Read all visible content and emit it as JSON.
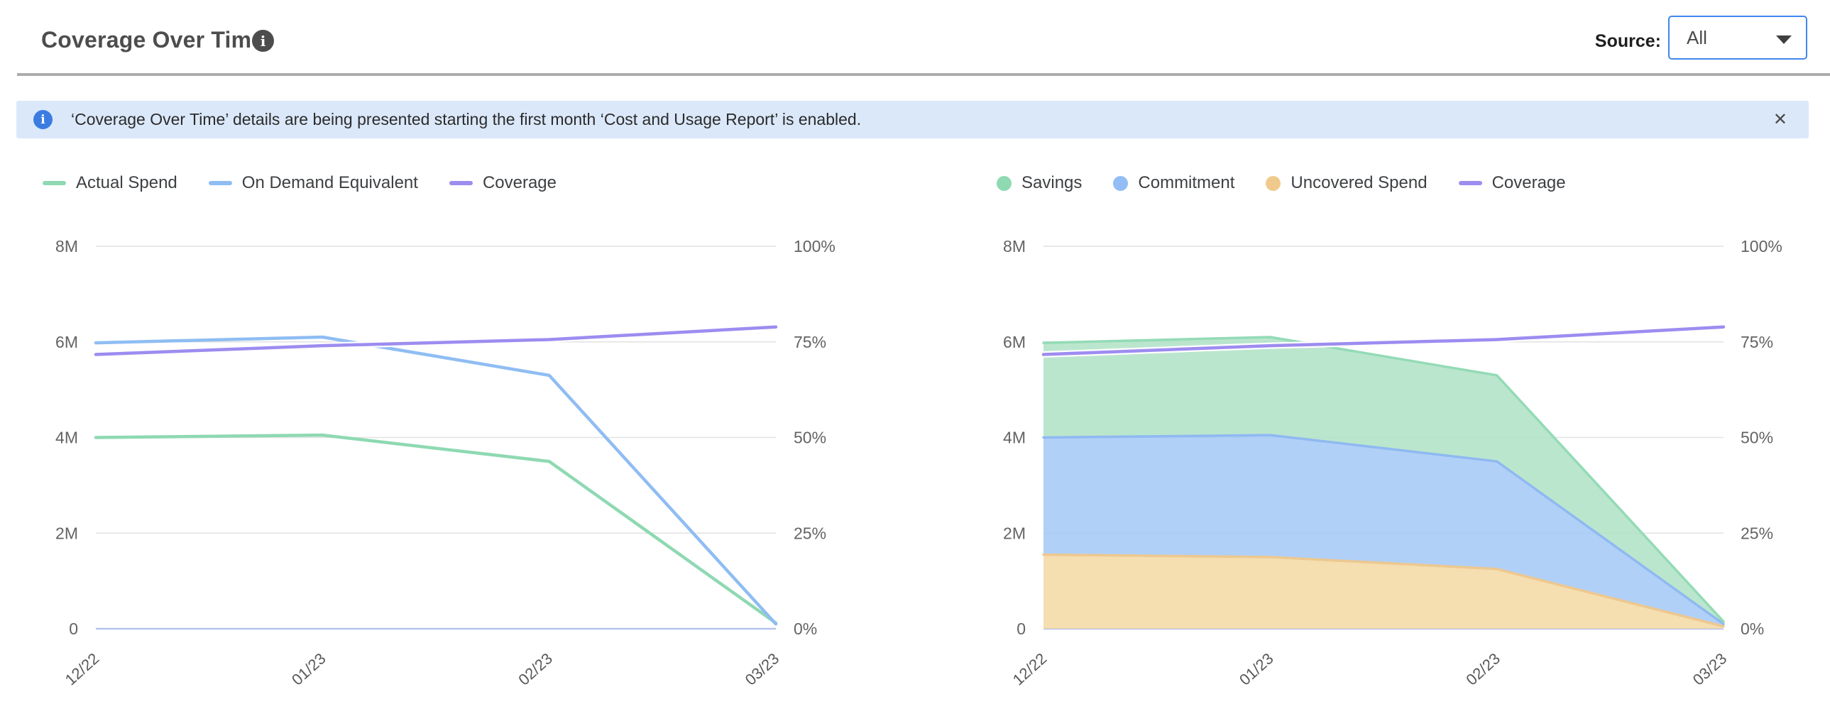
{
  "header": {
    "title": "Coverage Over Time",
    "source_label": "Source:",
    "source_value": "All"
  },
  "banner": {
    "text": "‘Coverage Over Time’ details are being presented starting the first month ‘Cost and Usage Report’ is enabled.",
    "close_icon": "✕"
  },
  "colors": {
    "green": "#8ed9b2",
    "blue": "#8fbdf3",
    "purple": "#9d8cf0",
    "tan": "#f0ca8c",
    "grid": "#e2e2e2",
    "axis_baseline": "#b6c3ee",
    "banner_bg": "#dbe8fa",
    "accent_blue": "#4087ed"
  },
  "chart_data": [
    {
      "type": "line",
      "categories": [
        "12/22",
        "01/23",
        "02/23",
        "03/23"
      ],
      "left_axis": {
        "ticks": [
          "8M",
          "6M",
          "4M",
          "2M",
          "0"
        ],
        "min": 0,
        "max": 8,
        "unit": "M"
      },
      "right_axis": {
        "ticks": [
          "100%",
          "75%",
          "50%",
          "25%",
          "0%"
        ],
        "min": 0,
        "max": 100,
        "unit": "%"
      },
      "grid": true,
      "legend": [
        {
          "label": "Actual Spend",
          "swatch": "line",
          "color": "#8ed9b2"
        },
        {
          "label": "On Demand Equivalent",
          "swatch": "line",
          "color": "#8fbdf3"
        },
        {
          "label": "Coverage",
          "swatch": "line",
          "color": "#9d8cf0"
        }
      ],
      "series": [
        {
          "name": "Actual Spend",
          "axis": "left",
          "color": "#8ed9b2",
          "values": [
            4.0,
            4.05,
            3.5,
            0.12
          ]
        },
        {
          "name": "On Demand Equivalent",
          "axis": "left",
          "color": "#8fbdf3",
          "values": [
            5.98,
            6.1,
            5.3,
            0.1
          ]
        },
        {
          "name": "Coverage",
          "axis": "right",
          "color": "#9d8cf0",
          "values": [
            71.7,
            74.0,
            75.6,
            78.9
          ]
        }
      ]
    },
    {
      "type": "area",
      "categories": [
        "12/22",
        "01/23",
        "02/23",
        "03/23"
      ],
      "left_axis": {
        "ticks": [
          "8M",
          "6M",
          "4M",
          "2M",
          "0"
        ],
        "min": 0,
        "max": 8,
        "unit": "M"
      },
      "right_axis": {
        "ticks": [
          "100%",
          "75%",
          "50%",
          "25%",
          "0%"
        ],
        "min": 0,
        "max": 100,
        "unit": "%"
      },
      "grid": true,
      "stacked": true,
      "legend": [
        {
          "label": "Savings",
          "swatch": "dot",
          "color": "#8fd9b3"
        },
        {
          "label": "Commitment",
          "swatch": "dot",
          "color": "#92bef5"
        },
        {
          "label": "Uncovered Spend",
          "swatch": "dot",
          "color": "#f0ca8c"
        },
        {
          "label": "Coverage",
          "swatch": "line",
          "color": "#9d8cf0"
        }
      ],
      "series": [
        {
          "name": "Uncovered Spend",
          "axis": "left",
          "stack": true,
          "color": "#edc88f",
          "fill": "#f3d8a2",
          "values": [
            1.55,
            1.5,
            1.25,
            0.05
          ]
        },
        {
          "name": "Commitment",
          "axis": "left",
          "stack": true,
          "color": "#8fb9f1",
          "fill": "#a3c8f6",
          "values": [
            2.45,
            2.55,
            2.25,
            0.05
          ]
        },
        {
          "name": "Savings",
          "axis": "left",
          "stack": true,
          "color": "#93dbb6",
          "fill": "#afe2c6",
          "values": [
            1.98,
            2.05,
            1.8,
            0.05
          ]
        },
        {
          "name": "Coverage",
          "axis": "right",
          "color": "#9d8cf0",
          "values": [
            71.7,
            74.0,
            75.6,
            78.9
          ]
        }
      ]
    }
  ]
}
